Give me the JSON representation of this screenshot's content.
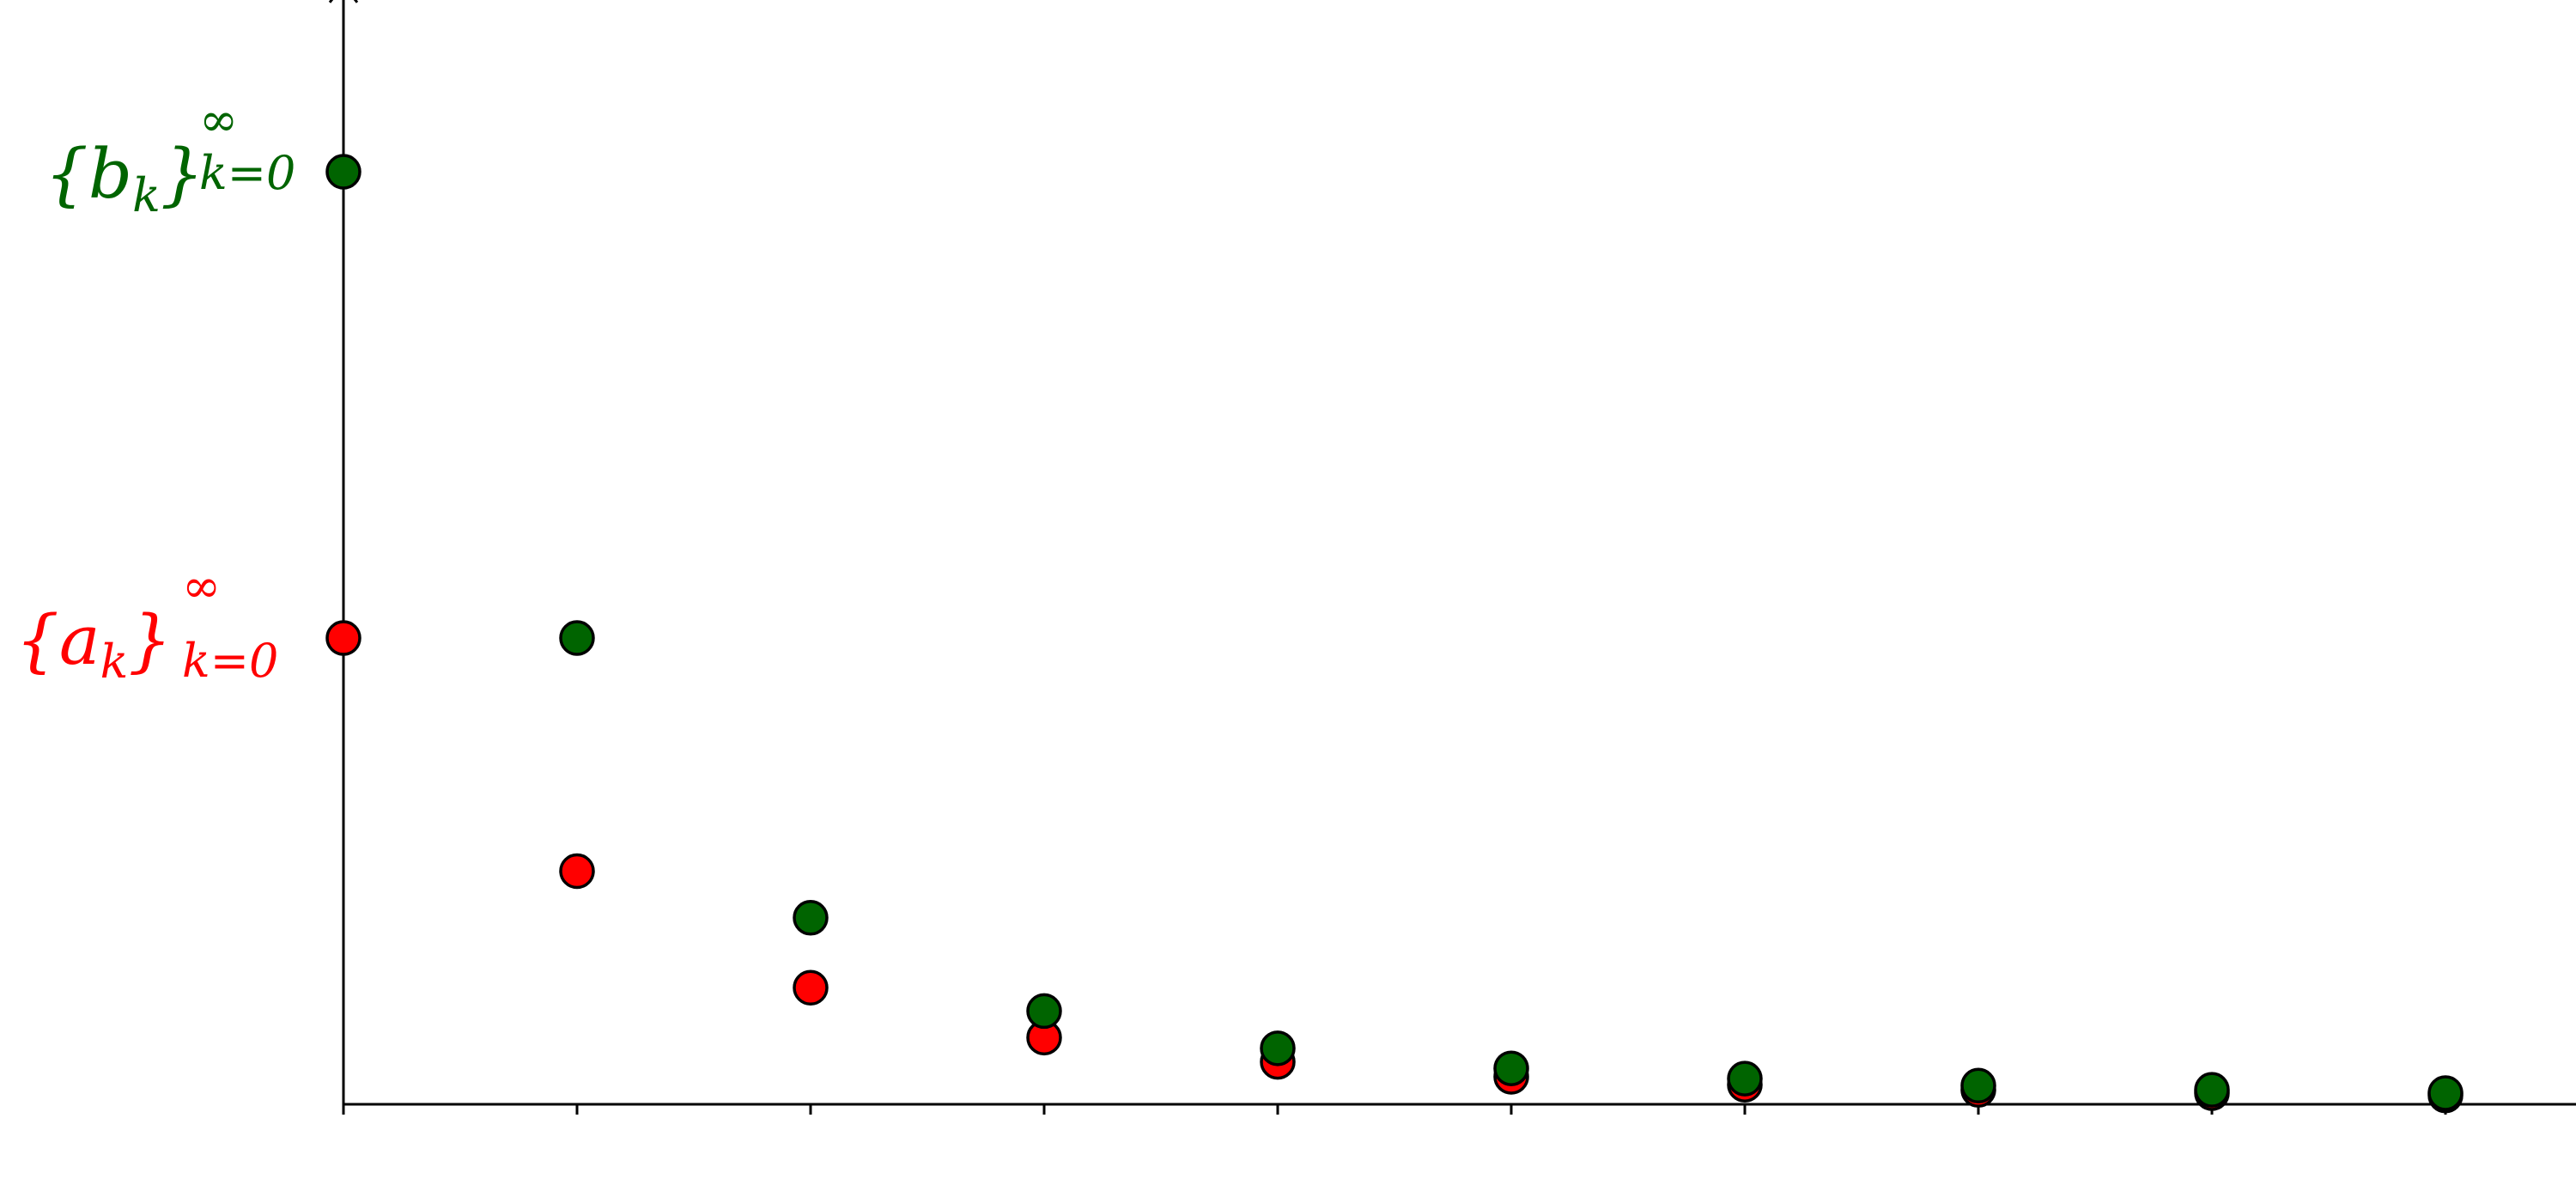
{
  "chart_data": {
    "type": "scatter",
    "title": "",
    "xlabel": "",
    "ylabel": "",
    "grid": false,
    "legend": "none",
    "x_ticks": [
      0,
      1,
      2,
      3,
      4,
      5,
      6,
      7,
      8,
      9
    ],
    "xlim": [
      0,
      9.95
    ],
    "ylim": [
      0,
      2.4
    ],
    "series": [
      {
        "name": "{a_k}_{k=0}^∞",
        "label_parts": {
          "brace_open": "{",
          "symbol": "a",
          "index": "k",
          "brace_close": "}",
          "sup": "∞",
          "sub": "k=0"
        },
        "color": "#ff0000",
        "x": [
          0,
          1,
          2,
          3,
          4,
          5,
          6,
          7,
          8,
          9
        ],
        "y": [
          1.0,
          0.5,
          0.25,
          0.143,
          0.091,
          0.059,
          0.042,
          0.031,
          0.024,
          0.019
        ]
      },
      {
        "name": "{b_k}_{k=0}^∞",
        "label_parts": {
          "brace_open": "{",
          "symbol": "b",
          "index": "k",
          "brace_close": "}",
          "sup": "∞",
          "sub": "k=0"
        },
        "color": "#006400",
        "x": [
          0,
          1,
          2,
          3,
          4,
          5,
          6,
          7,
          8,
          9
        ],
        "y": [
          2.0,
          1.0,
          0.4,
          0.2,
          0.12,
          0.077,
          0.055,
          0.04,
          0.031,
          0.024
        ]
      }
    ]
  }
}
